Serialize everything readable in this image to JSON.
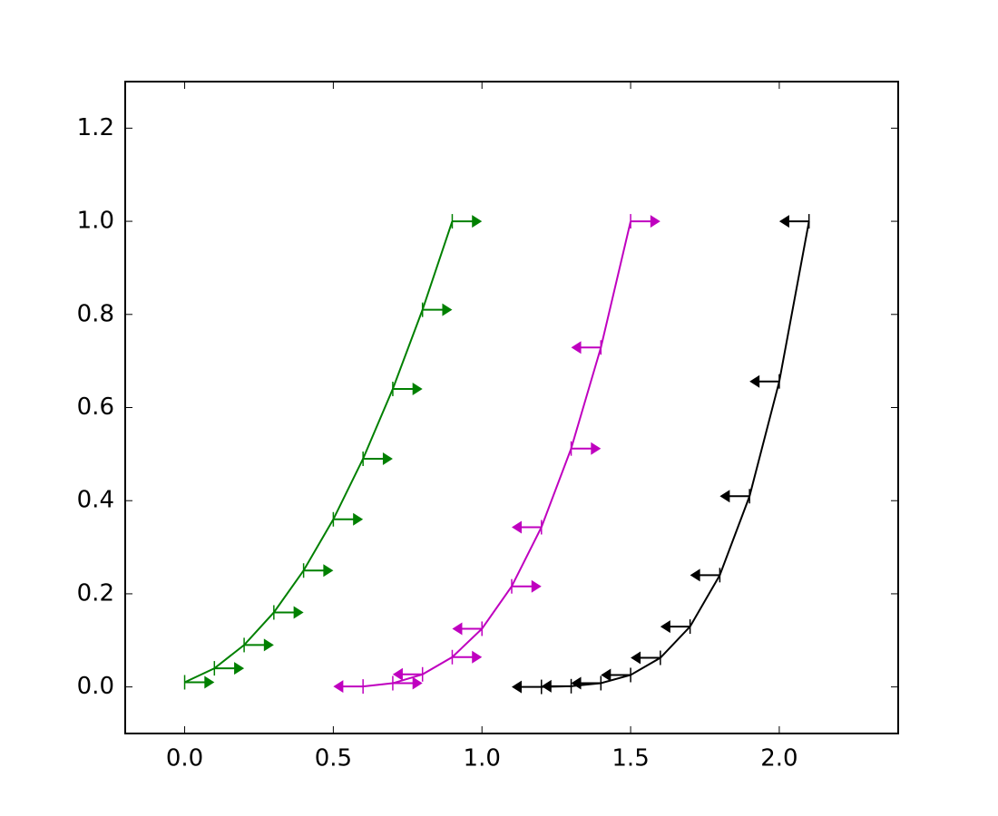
{
  "chart_data": {
    "type": "errorbar",
    "xlim": [
      -0.2,
      2.4
    ],
    "ylim": [
      -0.1,
      1.3
    ],
    "xticks": [
      {
        "value": 0,
        "label": "0.0"
      },
      {
        "value": 0.5,
        "label": "0.5"
      },
      {
        "value": 1,
        "label": "1.0"
      },
      {
        "value": 1.5,
        "label": "1.5"
      },
      {
        "value": 2,
        "label": "2.0"
      }
    ],
    "yticks": [
      {
        "value": 0,
        "label": "0.0"
      },
      {
        "value": 0.2,
        "label": "0.2"
      },
      {
        "value": 0.4,
        "label": "0.4"
      },
      {
        "value": 0.6,
        "label": "0.6"
      },
      {
        "value": 0.8,
        "label": "0.8"
      },
      {
        "value": 1,
        "label": "1.0"
      },
      {
        "value": 1.2,
        "label": "1.2"
      }
    ],
    "series": [
      {
        "color": "#008000",
        "xerr": 0.1,
        "x": [
          0,
          0.1,
          0.2,
          0.3,
          0.4,
          0.5,
          0.6,
          0.7,
          0.8,
          0.9
        ],
        "values": [
          0.01,
          0.04,
          0.09,
          0.16,
          0.25,
          0.36,
          0.49,
          0.64,
          0.81,
          1.0
        ],
        "limits": [
          "lower",
          "lower",
          "lower",
          "lower",
          "lower",
          "lower",
          "lower",
          "lower",
          "lower",
          "lower"
        ]
      },
      {
        "color": "#bf00bf",
        "xerr": 0.1,
        "x": [
          0.6,
          0.7,
          0.8,
          0.9,
          1.0,
          1.1,
          1.2,
          1.3,
          1.4,
          1.5
        ],
        "values": [
          0.001,
          0.008,
          0.027,
          0.064,
          0.125,
          0.216,
          0.343,
          0.512,
          0.729,
          1.0
        ],
        "limits": [
          "upper",
          "lower",
          "upper",
          "lower",
          "upper",
          "lower",
          "upper",
          "lower",
          "upper",
          "lower"
        ]
      },
      {
        "color": "#000000",
        "xerr": 0.1,
        "x": [
          1.2,
          1.3,
          1.4,
          1.5,
          1.6,
          1.7,
          1.8,
          1.9,
          2.0,
          2.1
        ],
        "values": [
          0.0001,
          0.0016,
          0.0081,
          0.0256,
          0.0625,
          0.1296,
          0.2401,
          0.4096,
          0.6561,
          1.0
        ],
        "limits": [
          "upper",
          "upper",
          "upper",
          "upper",
          "upper",
          "upper",
          "upper",
          "upper",
          "upper",
          "upper"
        ]
      }
    ]
  }
}
